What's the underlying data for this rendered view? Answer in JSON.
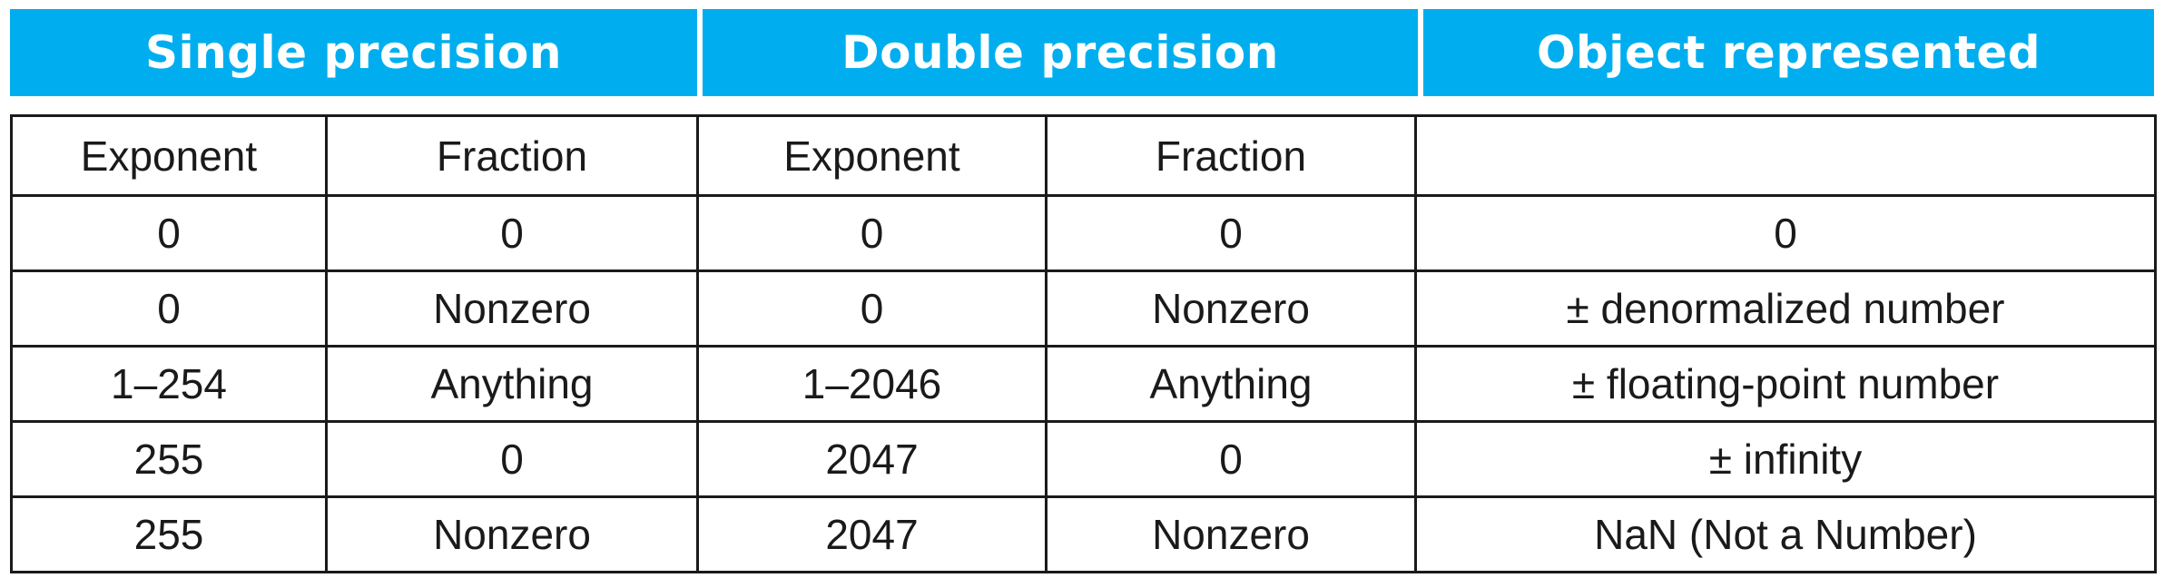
{
  "header": {
    "single_precision": "Single precision",
    "double_precision": "Double precision",
    "object_represented": "Object represented"
  },
  "colors": {
    "header_bg": "#00AEEF",
    "header_text": "#FFFFFF",
    "border": "#1A1A1A"
  },
  "columns": [
    "Exponent",
    "Fraction",
    "Exponent",
    "Fraction",
    ""
  ],
  "rows": [
    [
      "0",
      "0",
      "0",
      "0",
      "0"
    ],
    [
      "0",
      "Nonzero",
      "0",
      "Nonzero",
      "± denormalized number"
    ],
    [
      "1–254",
      "Anything",
      "1–2046",
      "Anything",
      "± floating-point number"
    ],
    [
      "255",
      "0",
      "2047",
      "0",
      "± infinity"
    ],
    [
      "255",
      "Nonzero",
      "2047",
      "Nonzero",
      "NaN (Not a Number)"
    ]
  ]
}
